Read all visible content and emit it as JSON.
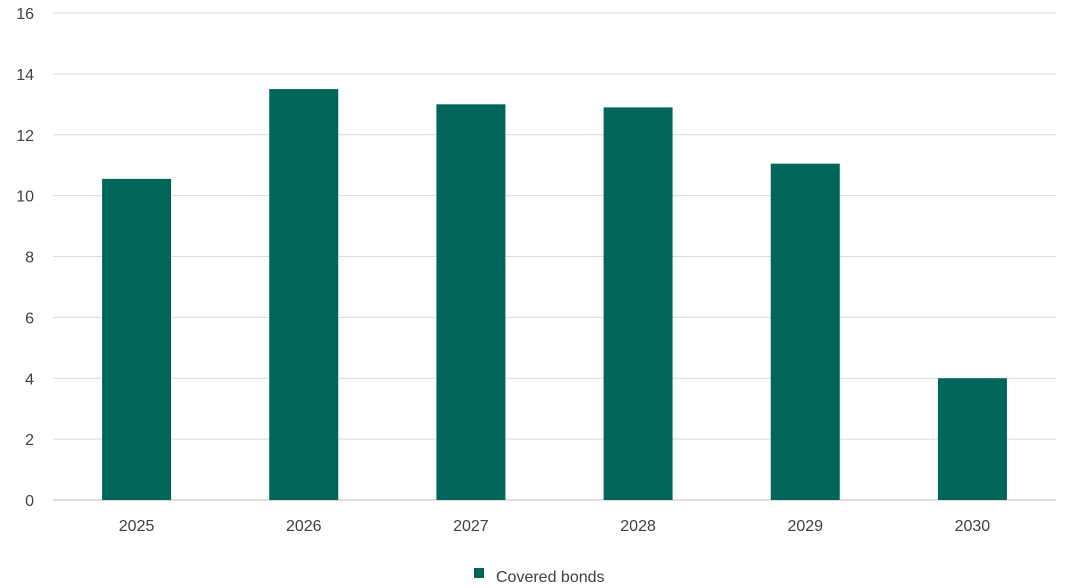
{
  "chart_data": {
    "type": "bar",
    "categories": [
      "2025",
      "2026",
      "2027",
      "2028",
      "2029",
      "2030"
    ],
    "series": [
      {
        "name": "Covered bonds",
        "values": [
          10.55,
          13.5,
          13.0,
          12.9,
          11.05,
          4.0
        ],
        "color": "#00665a"
      }
    ],
    "ylim": [
      0,
      16
    ],
    "yticks": [
      0,
      2,
      4,
      6,
      8,
      10,
      12,
      14,
      16
    ],
    "grid": true,
    "legend_position": "bottom"
  }
}
